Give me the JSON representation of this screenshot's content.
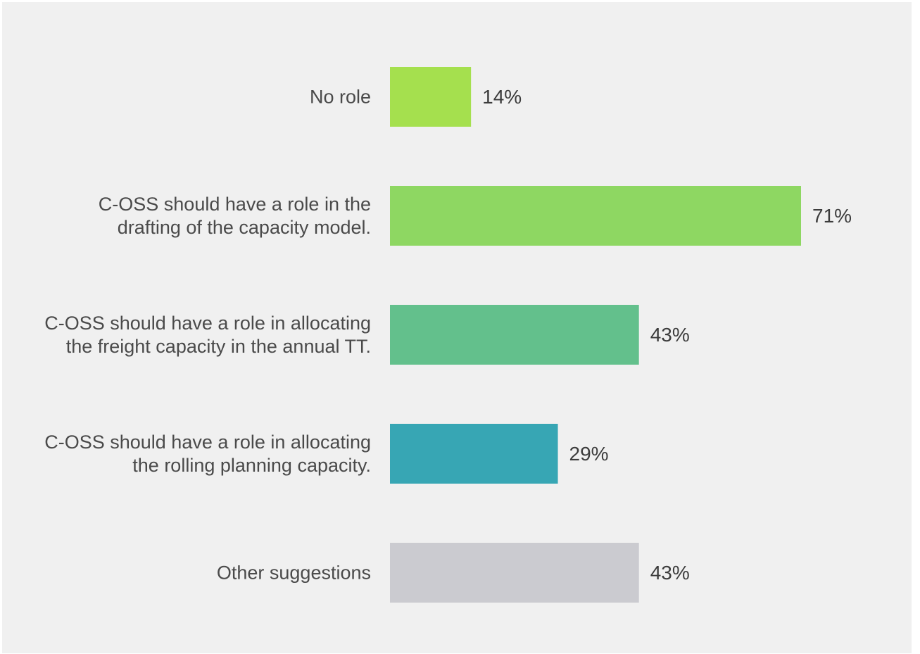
{
  "chart_data": {
    "type": "bar",
    "orientation": "horizontal",
    "categories": [
      [
        "No role"
      ],
      [
        "C-OSS should have a role in the",
        "drafting of the capacity model."
      ],
      [
        "C-OSS should have a role in allocating",
        "the freight capacity in the annual TT."
      ],
      [
        "C-OSS should have a role in allocating",
        "the rolling planning capacity."
      ],
      [
        "Other suggestions"
      ]
    ],
    "values": [
      14,
      71,
      43,
      29,
      43
    ],
    "value_labels": [
      "14%",
      "71%",
      "43%",
      "29%",
      "43%"
    ],
    "bar_colors": [
      "#a5e04e",
      "#8ed762",
      "#63c08c",
      "#37a6b4",
      "#cbcbd0"
    ],
    "background_color": "#f0f0f0",
    "title": "",
    "xlabel": "",
    "ylabel": "",
    "xlim": [
      0,
      71
    ],
    "grid": false,
    "legend": "none"
  }
}
